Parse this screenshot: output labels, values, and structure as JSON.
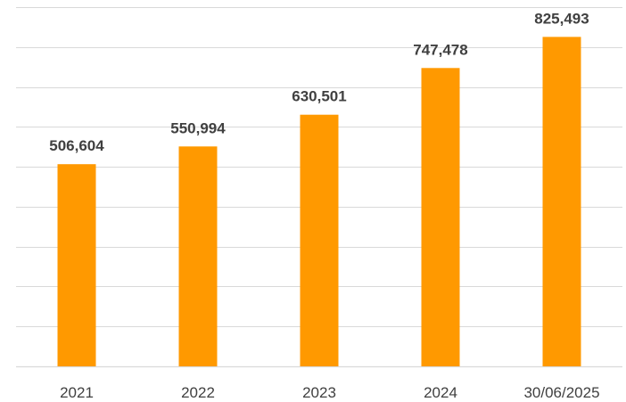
{
  "chart_data": {
    "type": "bar",
    "categories": [
      "2021",
      "2022",
      "2023",
      "2024",
      "30/06/2025"
    ],
    "values": [
      506604,
      550994,
      630501,
      747478,
      825493
    ],
    "data_labels": [
      "506,604",
      "550,994",
      "630,501",
      "747,478",
      "825,493"
    ],
    "title": "",
    "xlabel": "",
    "ylabel": "",
    "ylim": [
      0,
      900000
    ],
    "y_gridline_step": 100000,
    "y_tick_labels_visible": false,
    "grid": true,
    "legend": "none",
    "bar_color": "#ff9900"
  }
}
